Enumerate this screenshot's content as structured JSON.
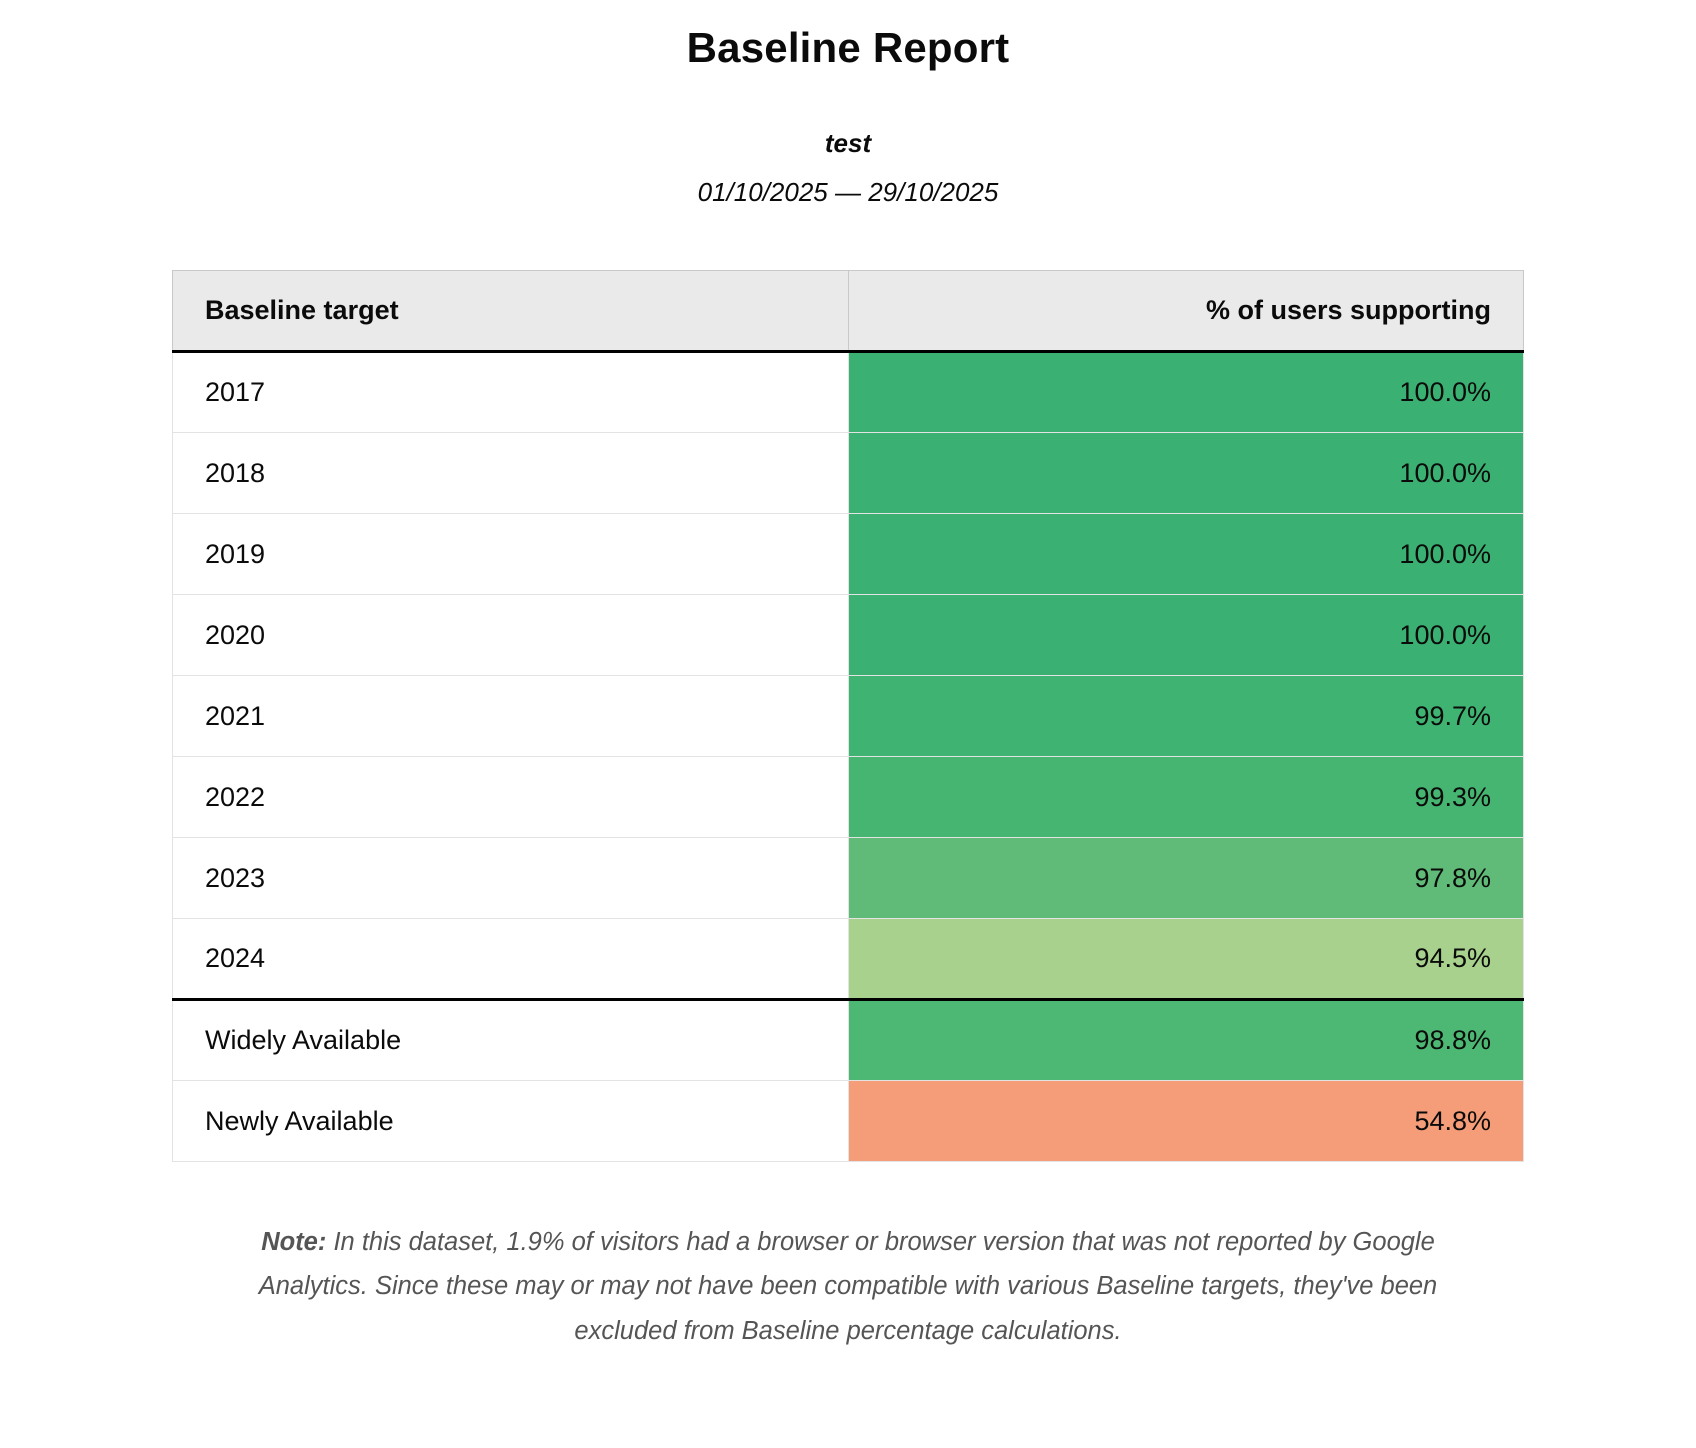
{
  "report": {
    "title": "Baseline Report",
    "subtitle": "test",
    "date_range": "01/10/2025 — 29/10/2025"
  },
  "table": {
    "headers": {
      "target": "Baseline target",
      "percent": "% of users supporting"
    },
    "rows": [
      {
        "target": "2017",
        "percent": "100.0%",
        "color": "#3ab172",
        "section": "years"
      },
      {
        "target": "2018",
        "percent": "100.0%",
        "color": "#3ab172",
        "section": "years"
      },
      {
        "target": "2019",
        "percent": "100.0%",
        "color": "#3ab172",
        "section": "years"
      },
      {
        "target": "2020",
        "percent": "100.0%",
        "color": "#3ab172",
        "section": "years"
      },
      {
        "target": "2021",
        "percent": "99.7%",
        "color": "#3fb371",
        "section": "years"
      },
      {
        "target": "2022",
        "percent": "99.3%",
        "color": "#46b571",
        "section": "years"
      },
      {
        "target": "2023",
        "percent": "97.8%",
        "color": "#5fbb77",
        "section": "years"
      },
      {
        "target": "2024",
        "percent": "94.5%",
        "color": "#a7d18c",
        "section": "years"
      },
      {
        "target": "Widely Available",
        "percent": "98.8%",
        "color": "#4db873",
        "section": "availability"
      },
      {
        "target": "Newly Available",
        "percent": "54.8%",
        "color": "#f59d78",
        "section": "availability"
      }
    ]
  },
  "note": {
    "label": "Note:",
    "text": "In this dataset, 1.9% of visitors had a browser or browser version that was not reported by Google Analytics. Since these may or may not have been compatible with various Baseline targets, they've been excluded from Baseline percentage calculations."
  }
}
